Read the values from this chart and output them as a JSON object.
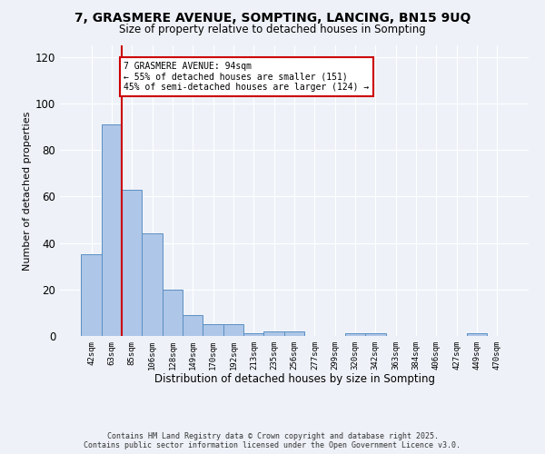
{
  "title_line1": "7, GRASMERE AVENUE, SOMPTING, LANCING, BN15 9UQ",
  "title_line2": "Size of property relative to detached houses in Sompting",
  "xlabel": "Distribution of detached houses by size in Sompting",
  "ylabel": "Number of detached properties",
  "categories": [
    "42sqm",
    "63sqm",
    "85sqm",
    "106sqm",
    "128sqm",
    "149sqm",
    "170sqm",
    "192sqm",
    "213sqm",
    "235sqm",
    "256sqm",
    "277sqm",
    "299sqm",
    "320sqm",
    "342sqm",
    "363sqm",
    "384sqm",
    "406sqm",
    "427sqm",
    "449sqm",
    "470sqm"
  ],
  "values": [
    35,
    91,
    63,
    44,
    20,
    9,
    5,
    5,
    1,
    2,
    2,
    0,
    0,
    1,
    1,
    0,
    0,
    0,
    0,
    1,
    0
  ],
  "bar_color": "#aec6e8",
  "bar_edge_color": "#5a8fc2",
  "vline_bar_index": 2,
  "vline_color": "#cc0000",
  "ylim": [
    0,
    125
  ],
  "yticks": [
    0,
    20,
    40,
    60,
    80,
    100,
    120
  ],
  "annotation_text": "7 GRASMERE AVENUE: 94sqm\n← 55% of detached houses are smaller (151)\n45% of semi-detached houses are larger (124) →",
  "footer_line1": "Contains HM Land Registry data © Crown copyright and database right 2025.",
  "footer_line2": "Contains public sector information licensed under the Open Government Licence v3.0.",
  "bg_color": "#eef2f8",
  "plot_bg_color": "#eef2f8"
}
